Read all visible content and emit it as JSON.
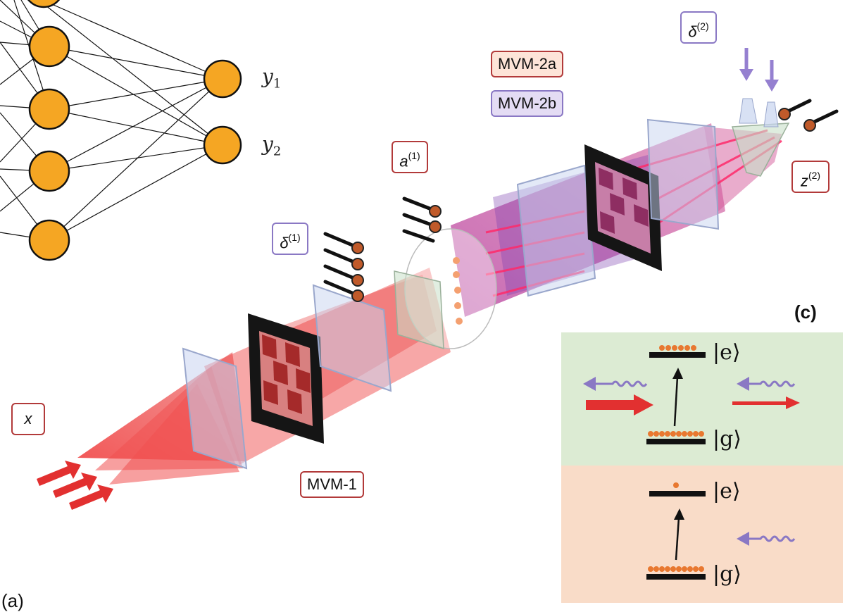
{
  "network": {
    "outputs": [
      {
        "symbol": "y",
        "index": "1"
      },
      {
        "symbol": "y",
        "index": "2"
      }
    ]
  },
  "labels": {
    "input": "x",
    "mvm1": "MVM-1",
    "mvm2a": "MVM-2a",
    "mvm2b": "MVM-2b",
    "delta1": {
      "symbol": "δ",
      "sup": "(1)"
    },
    "a1": {
      "symbol": "a",
      "sup": "(1)"
    },
    "delta2": {
      "symbol": "δ",
      "sup": "(2)"
    },
    "z2": {
      "symbol": "z",
      "sup": "(2)"
    }
  },
  "panel_c": {
    "letter": "(c)",
    "top_excited": "|e⟩",
    "top_ground": "|g⟩",
    "bottom_excited": "|e⟩",
    "bottom_ground": "|g⟩"
  },
  "panel_a_partial": "(a)",
  "colors": {
    "neuron": "#f5a623",
    "beam_red": "#e8262b",
    "beam_purple": "#8a78c4",
    "panel_green": "#dcebd3",
    "panel_peach": "#f9dcc8",
    "atom": "#e87830"
  }
}
